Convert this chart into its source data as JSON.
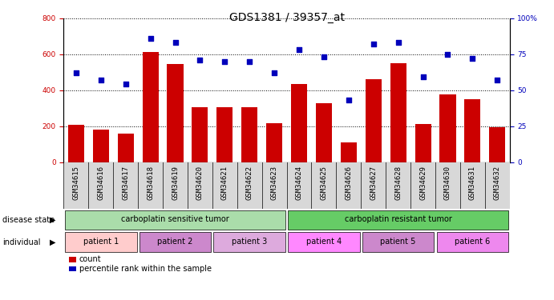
{
  "title": "GDS1381 / 39357_at",
  "samples": [
    "GSM34615",
    "GSM34616",
    "GSM34617",
    "GSM34618",
    "GSM34619",
    "GSM34620",
    "GSM34621",
    "GSM34622",
    "GSM34623",
    "GSM34624",
    "GSM34625",
    "GSM34626",
    "GSM34627",
    "GSM34628",
    "GSM34629",
    "GSM34630",
    "GSM34631",
    "GSM34632"
  ],
  "counts": [
    205,
    180,
    160,
    610,
    545,
    305,
    305,
    305,
    215,
    435,
    325,
    110,
    460,
    550,
    210,
    375,
    350,
    195
  ],
  "percentiles": [
    62,
    57,
    54,
    86,
    83,
    71,
    70,
    70,
    62,
    78,
    73,
    43,
    82,
    83,
    59,
    75,
    72,
    57
  ],
  "bar_color": "#CC0000",
  "dot_color": "#0000BB",
  "ylim_left": [
    0,
    800
  ],
  "ylim_right": [
    0,
    100
  ],
  "yticks_left": [
    0,
    200,
    400,
    600,
    800
  ],
  "yticks_right": [
    0,
    25,
    50,
    75,
    100
  ],
  "xlabel_bg": "#D8D8D8",
  "disease_sensitive_color": "#AADDAA",
  "disease_resistant_color": "#66CC66",
  "patient_colors": [
    "#FFCCCC",
    "#DD88DD",
    "#DDAADD",
    "#FF88FF",
    "#DD88DD",
    "#EE88EE"
  ],
  "background_color": "#ffffff",
  "title_fontsize": 10,
  "tick_fontsize": 6.5,
  "label_fontsize": 7
}
